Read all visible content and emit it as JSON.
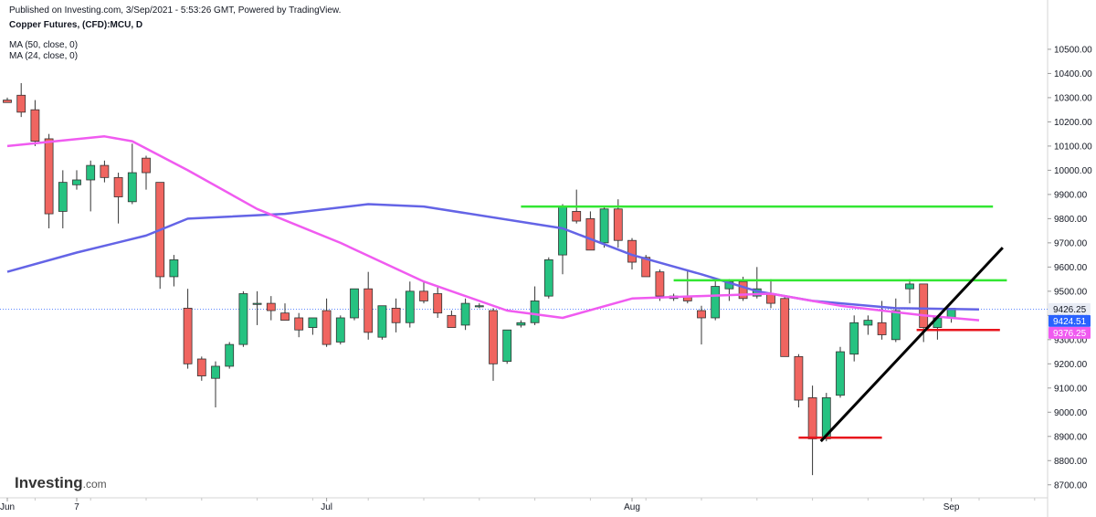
{
  "header": {
    "published": "Published on Investing.com, 3/Sep/2021 - 5:53:26 GMT, Powered by TradingView.",
    "symbol_title": "Copper Futures, (CFD):MCU, D",
    "ma50_legend": "MA (50, close, 0)",
    "ma24_legend": "MA (24, close, 0)"
  },
  "logo": {
    "brand": "Investing",
    "suffix": ".com"
  },
  "colors": {
    "up": "#26c281",
    "down": "#f06560",
    "ma50": "#6464e6",
    "ma24": "#f05bf0",
    "support_line": "#e8141c",
    "resistance_line": "#33e633",
    "trend_line": "#000000",
    "last_price_tag": "#2962ff"
  },
  "chart_data": {
    "type": "candlestick",
    "ylim": [
      8650,
      10550
    ],
    "grid": false,
    "y_ticks": [
      "10500.00",
      "10400.00",
      "10300.00",
      "10200.00",
      "10100.00",
      "10000.00",
      "9900.00",
      "9800.00",
      "9700.00",
      "9600.00",
      "9500.00",
      "9400.00",
      "9300.00",
      "9200.00",
      "9100.00",
      "9000.00",
      "8900.00",
      "8800.00",
      "8700.00"
    ],
    "x_labels": [
      {
        "label": "Jun",
        "index": 0
      },
      {
        "label": "7",
        "index": 5
      },
      {
        "label": "Jul",
        "index": 23
      },
      {
        "label": "Aug",
        "index": 45
      },
      {
        "label": "Sep",
        "index": 68
      }
    ],
    "price_tags": [
      {
        "label": "9426.25",
        "value": 9426.25,
        "kind": "last"
      },
      {
        "label": "9424.51",
        "value": 9424.51,
        "kind": "ma50"
      },
      {
        "label": "9376.25",
        "value": 9376.25,
        "kind": "ma24"
      }
    ],
    "candles": [
      {
        "o": 10290,
        "h": 10300,
        "l": 10280,
        "c": 10280
      },
      {
        "o": 10310,
        "h": 10360,
        "l": 10220,
        "c": 10240
      },
      {
        "o": 10250,
        "h": 10290,
        "l": 10100,
        "c": 10120
      },
      {
        "o": 10130,
        "h": 10150,
        "l": 9760,
        "c": 9820
      },
      {
        "o": 9830,
        "h": 10000,
        "l": 9760,
        "c": 9950
      },
      {
        "o": 9940,
        "h": 10000,
        "l": 9920,
        "c": 9960
      },
      {
        "o": 9960,
        "h": 10040,
        "l": 9830,
        "c": 10020
      },
      {
        "o": 10020,
        "h": 10040,
        "l": 9950,
        "c": 9970
      },
      {
        "o": 9970,
        "h": 9990,
        "l": 9780,
        "c": 9890
      },
      {
        "o": 9870,
        "h": 10110,
        "l": 9860,
        "c": 9990
      },
      {
        "o": 10050,
        "h": 10060,
        "l": 9920,
        "c": 9990
      },
      {
        "o": 9950,
        "h": 9950,
        "l": 9510,
        "c": 9560
      },
      {
        "o": 9560,
        "h": 9650,
        "l": 9520,
        "c": 9630
      },
      {
        "o": 9430,
        "h": 9510,
        "l": 9180,
        "c": 9200
      },
      {
        "o": 9220,
        "h": 9230,
        "l": 9130,
        "c": 9150
      },
      {
        "o": 9140,
        "h": 9210,
        "l": 9020,
        "c": 9190
      },
      {
        "o": 9190,
        "h": 9290,
        "l": 9180,
        "c": 9280
      },
      {
        "o": 9280,
        "h": 9500,
        "l": 9270,
        "c": 9490
      },
      {
        "o": 9450,
        "h": 9500,
        "l": 9360,
        "c": 9450
      },
      {
        "o": 9450,
        "h": 9480,
        "l": 9380,
        "c": 9420
      },
      {
        "o": 9410,
        "h": 9450,
        "l": 9380,
        "c": 9380
      },
      {
        "o": 9390,
        "h": 9410,
        "l": 9310,
        "c": 9340
      },
      {
        "o": 9350,
        "h": 9390,
        "l": 9320,
        "c": 9390
      },
      {
        "o": 9420,
        "h": 9470,
        "l": 9270,
        "c": 9280
      },
      {
        "o": 9290,
        "h": 9400,
        "l": 9280,
        "c": 9390
      },
      {
        "o": 9390,
        "h": 9510,
        "l": 9380,
        "c": 9510
      },
      {
        "o": 9510,
        "h": 9580,
        "l": 9300,
        "c": 9330
      },
      {
        "o": 9310,
        "h": 9440,
        "l": 9300,
        "c": 9440
      },
      {
        "o": 9430,
        "h": 9470,
        "l": 9330,
        "c": 9370
      },
      {
        "o": 9370,
        "h": 9540,
        "l": 9350,
        "c": 9500
      },
      {
        "o": 9500,
        "h": 9540,
        "l": 9450,
        "c": 9460
      },
      {
        "o": 9490,
        "h": 9520,
        "l": 9390,
        "c": 9410
      },
      {
        "o": 9400,
        "h": 9420,
        "l": 9350,
        "c": 9350
      },
      {
        "o": 9360,
        "h": 9470,
        "l": 9340,
        "c": 9450
      },
      {
        "o": 9440,
        "h": 9450,
        "l": 9430,
        "c": 9440
      },
      {
        "o": 9420,
        "h": 9430,
        "l": 9130,
        "c": 9200
      },
      {
        "o": 9210,
        "h": 9340,
        "l": 9200,
        "c": 9340
      },
      {
        "o": 9360,
        "h": 9380,
        "l": 9350,
        "c": 9370
      },
      {
        "o": 9370,
        "h": 9520,
        "l": 9360,
        "c": 9460
      },
      {
        "o": 9480,
        "h": 9640,
        "l": 9470,
        "c": 9630
      },
      {
        "o": 9650,
        "h": 9860,
        "l": 9570,
        "c": 9850
      },
      {
        "o": 9830,
        "h": 9920,
        "l": 9780,
        "c": 9790
      },
      {
        "o": 9800,
        "h": 9830,
        "l": 9670,
        "c": 9670
      },
      {
        "o": 9700,
        "h": 9850,
        "l": 9680,
        "c": 9840
      },
      {
        "o": 9840,
        "h": 9880,
        "l": 9680,
        "c": 9710
      },
      {
        "o": 9710,
        "h": 9720,
        "l": 9590,
        "c": 9620
      },
      {
        "o": 9640,
        "h": 9650,
        "l": 9560,
        "c": 9560
      },
      {
        "o": 9580,
        "h": 9590,
        "l": 9460,
        "c": 9480
      },
      {
        "o": 9470,
        "h": 9490,
        "l": 9460,
        "c": 9480
      },
      {
        "o": 9480,
        "h": 9590,
        "l": 9450,
        "c": 9460
      },
      {
        "o": 9420,
        "h": 9440,
        "l": 9280,
        "c": 9390
      },
      {
        "o": 9390,
        "h": 9550,
        "l": 9380,
        "c": 9520
      },
      {
        "o": 9510,
        "h": 9550,
        "l": 9460,
        "c": 9540
      },
      {
        "o": 9540,
        "h": 9560,
        "l": 9460,
        "c": 9470
      },
      {
        "o": 9480,
        "h": 9600,
        "l": 9470,
        "c": 9510
      },
      {
        "o": 9490,
        "h": 9550,
        "l": 9430,
        "c": 9450
      },
      {
        "o": 9470,
        "h": 9480,
        "l": 9230,
        "c": 9230
      },
      {
        "o": 9230,
        "h": 9240,
        "l": 9020,
        "c": 9050
      },
      {
        "o": 9060,
        "h": 9110,
        "l": 8740,
        "c": 8890
      },
      {
        "o": 8890,
        "h": 9080,
        "l": 8880,
        "c": 9060
      },
      {
        "o": 9070,
        "h": 9270,
        "l": 9060,
        "c": 9250
      },
      {
        "o": 9240,
        "h": 9400,
        "l": 9210,
        "c": 9370
      },
      {
        "o": 9360,
        "h": 9400,
        "l": 9320,
        "c": 9380
      },
      {
        "o": 9370,
        "h": 9460,
        "l": 9300,
        "c": 9320
      },
      {
        "o": 9300,
        "h": 9470,
        "l": 9290,
        "c": 9420
      },
      {
        "o": 9510,
        "h": 9550,
        "l": 9450,
        "c": 9530
      },
      {
        "o": 9530,
        "h": 9530,
        "l": 9290,
        "c": 9350
      },
      {
        "o": 9350,
        "h": 9400,
        "l": 9300,
        "c": 9390
      },
      {
        "o": 9390,
        "h": 9430,
        "l": 9370,
        "c": 9430
      }
    ],
    "ma50": [
      [
        0,
        9580
      ],
      [
        5,
        9660
      ],
      [
        10,
        9730
      ],
      [
        13,
        9800
      ],
      [
        20,
        9820
      ],
      [
        26,
        9860
      ],
      [
        30,
        9850
      ],
      [
        40,
        9760
      ],
      [
        45,
        9650
      ],
      [
        50,
        9570
      ],
      [
        54,
        9500
      ],
      [
        58,
        9460
      ],
      [
        64,
        9430
      ],
      [
        70,
        9425
      ]
    ],
    "ma24": [
      [
        0,
        10100
      ],
      [
        7,
        10140
      ],
      [
        9,
        10120
      ],
      [
        13,
        10000
      ],
      [
        18,
        9840
      ],
      [
        24,
        9700
      ],
      [
        30,
        9540
      ],
      [
        36,
        9420
      ],
      [
        40,
        9390
      ],
      [
        45,
        9470
      ],
      [
        50,
        9480
      ],
      [
        55,
        9490
      ],
      [
        60,
        9440
      ],
      [
        66,
        9400
      ],
      [
        70,
        9380
      ]
    ],
    "horizontal_lines": [
      {
        "value": 9850,
        "from": 37,
        "to": 71,
        "kind": "resistance_line"
      },
      {
        "value": 9545,
        "from": 48,
        "to": 72,
        "kind": "resistance_line"
      },
      {
        "value": 8895,
        "from": 57,
        "to": 63,
        "kind": "support_line"
      },
      {
        "value": 9340,
        "from": 65.5,
        "to": 71.5,
        "kind": "support_line"
      }
    ],
    "trend_lines": [
      {
        "from": [
          58.6,
          8880
        ],
        "to": [
          71.7,
          9680
        ],
        "kind": "trend_line"
      }
    ]
  }
}
